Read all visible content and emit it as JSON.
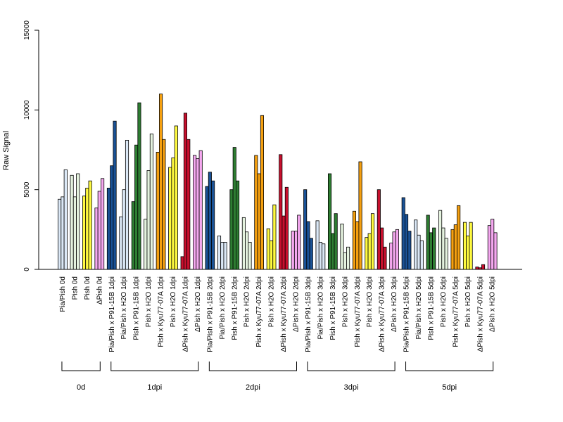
{
  "chart_data": {
    "type": "bar",
    "ylabel": "Raw Signal",
    "ylim": [
      0,
      15000
    ],
    "yticks": [
      0,
      5000,
      10000,
      15000
    ],
    "yticks_labels": [
      "0",
      "5000",
      "10000",
      "15000"
    ],
    "bar_groups": [
      {
        "label": "Pia/Pish 0d",
        "color": "#dbe8f6",
        "values": [
          4400,
          4550,
          6250
        ]
      },
      {
        "label": "Pish 0d",
        "color": "#e5f3df",
        "values": [
          5900,
          4550,
          6000
        ]
      },
      {
        "label": "Pish 0d",
        "color": "#fffa40",
        "values": [
          4600,
          5100,
          5550
        ]
      },
      {
        "label": "ΔPish 0d",
        "color": "#f5a8f0",
        "values": [
          3850,
          4900,
          5700
        ]
      },
      {
        "label": "Pia/Pish x P91-15B 1dpi",
        "color": "#1a5296",
        "values": [
          5100,
          6500,
          9300
        ]
      },
      {
        "label": "Pia/Pish x H2O 1dpi",
        "color": "#dbe8f6",
        "values": [
          3300,
          5000,
          8100
        ]
      },
      {
        "label": "Pish x P91-15B 1dpi",
        "color": "#2e7d32",
        "values": [
          4250,
          7800,
          10450
        ]
      },
      {
        "label": "Pish x H2O 1dpi",
        "color": "#e5f3df",
        "values": [
          3150,
          6200,
          8500
        ]
      },
      {
        "label": "Pish x Kyu77-07A 1dpi",
        "color": "#f5a010",
        "values": [
          7350,
          11000,
          8150
        ]
      },
      {
        "label": "Pish x H2O 1dpi",
        "color": "#fffa40",
        "values": [
          6400,
          7000,
          9000
        ]
      },
      {
        "label": "ΔPish x Kyu77-07A 1dpi",
        "color": "#c8102e",
        "values": [
          800,
          9800,
          8150
        ]
      },
      {
        "label": "ΔPish x H2O 1dpi",
        "color": "#f5a8f0",
        "values": [
          7150,
          6950,
          7450
        ]
      },
      {
        "label": "Pia/Pish x P91-15B 2dpi",
        "color": "#1a5296",
        "values": [
          5200,
          6100,
          5550
        ]
      },
      {
        "label": "Pia/Pish x H2O 2dpi",
        "color": "#dbe8f6",
        "values": [
          2100,
          1700,
          1700
        ]
      },
      {
        "label": "Pish x P91-15B 2dpi",
        "color": "#2e7d32",
        "values": [
          5000,
          7650,
          5550
        ]
      },
      {
        "label": "Pish x H2O 2dpi",
        "color": "#e5f3df",
        "values": [
          3250,
          2350,
          1700
        ]
      },
      {
        "label": "Pish x Kyu77-07A 2dpi",
        "color": "#f5a010",
        "values": [
          7150,
          6000,
          9650
        ]
      },
      {
        "label": "Pish x H2O 2dpi",
        "color": "#fffa40",
        "values": [
          2550,
          1800,
          4050
        ]
      },
      {
        "label": "ΔPish x Kyu77-07A 2dpi",
        "color": "#c8102e",
        "values": [
          7200,
          3350,
          5150
        ]
      },
      {
        "label": "ΔPish x H2O 2dpi",
        "color": "#f5a8f0",
        "values": [
          2400,
          2400,
          3400
        ]
      },
      {
        "label": "Pia/Pish x P91-15B 3dpi",
        "color": "#1a5296",
        "values": [
          5000,
          3000,
          1950
        ]
      },
      {
        "label": "Pia/Pish x H2O 3dpi",
        "color": "#dbe8f6",
        "values": [
          3050,
          1700,
          1600
        ]
      },
      {
        "label": "Pish x P91-15B 3dpi",
        "color": "#2e7d32",
        "values": [
          6000,
          2250,
          3500
        ]
      },
      {
        "label": "Pish x H2O 3dpi",
        "color": "#e5f3df",
        "values": [
          2850,
          1050,
          1400
        ]
      },
      {
        "label": "Pish x Kyu77-07A 3dpi",
        "color": "#f5a010",
        "values": [
          3650,
          3000,
          6750
        ]
      },
      {
        "label": "Pish x H2O 3dpi",
        "color": "#fffa40",
        "values": [
          2000,
          2250,
          3500
        ]
      },
      {
        "label": "ΔPish x Kyu77-07A 3dpi",
        "color": "#c8102e",
        "values": [
          5000,
          2600,
          1400
        ]
      },
      {
        "label": "ΔPish x H2O 3dpi",
        "color": "#f5a8f0",
        "values": [
          1650,
          2350,
          2500
        ]
      },
      {
        "label": "Pia/Pish x P91-15B 5dpi",
        "color": "#1a5296",
        "values": [
          4500,
          3450,
          2400
        ]
      },
      {
        "label": "Pia/Pish x H2O 5dpi",
        "color": "#dbe8f6",
        "values": [
          3100,
          2150,
          1800
        ]
      },
      {
        "label": "Pish x P91-15B 5dpi",
        "color": "#2e7d32",
        "values": [
          3400,
          2300,
          2600
        ]
      },
      {
        "label": "Pish x H2O 5dpi",
        "color": "#e5f3df",
        "values": [
          3700,
          2600,
          1950
        ]
      },
      {
        "label": "Pish x Kyu77-07A 5dpi",
        "color": "#f5a010",
        "values": [
          2500,
          2800,
          4000
        ]
      },
      {
        "label": "Pish x H2O 5dpi",
        "color": "#fffa40",
        "values": [
          2950,
          2100,
          2950
        ]
      },
      {
        "label": "ΔPish x Kyu77-07A 5dpi",
        "color": "#c8102e",
        "values": [
          150,
          100,
          300
        ]
      },
      {
        "label": "ΔPish x H2O 5dpi",
        "color": "#f5a8f0",
        "values": [
          2750,
          3150,
          2300
        ]
      }
    ],
    "timepoints": [
      {
        "label": "0d",
        "first_group": 0,
        "last_group": 3
      },
      {
        "label": "1dpi",
        "first_group": 4,
        "last_group": 11
      },
      {
        "label": "2dpi",
        "first_group": 12,
        "last_group": 19
      },
      {
        "label": "3dpi",
        "first_group": 20,
        "last_group": 27
      },
      {
        "label": "5dpi",
        "first_group": 28,
        "last_group": 35
      }
    ]
  }
}
